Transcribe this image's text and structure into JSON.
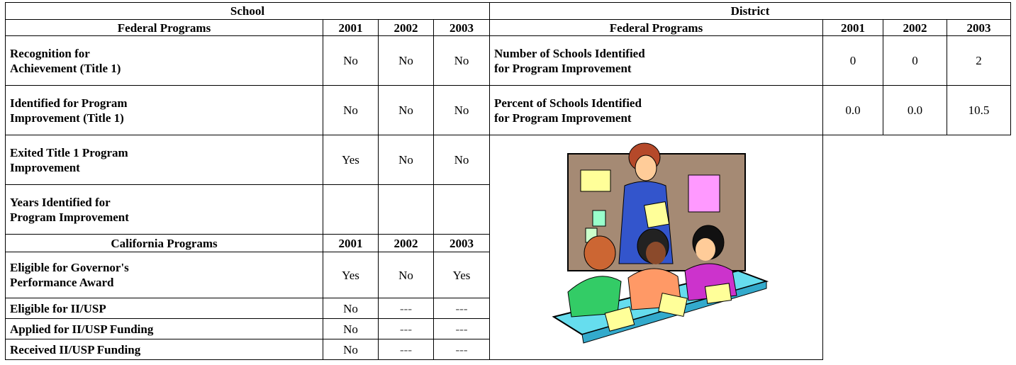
{
  "school": {
    "title": "School",
    "federal_header": [
      "Federal Programs",
      "2001",
      "2002",
      "2003"
    ],
    "federal_rows": [
      [
        "Recognition for\nAchievement (Title 1)",
        "No",
        "No",
        "No"
      ],
      [
        "Identified for Program\nImprovement (Title 1)",
        "No",
        "No",
        "No"
      ],
      [
        "Exited Title 1 Program\nImprovement",
        "Yes",
        "No",
        "No"
      ],
      [
        "Years Identified for\nProgram Improvement",
        null,
        null,
        null
      ]
    ],
    "california_header": [
      "California Programs",
      "2001",
      "2002",
      "2003"
    ],
    "california_rows": [
      [
        "Eligible for Governor's\nPerformance Award",
        "Yes",
        "No",
        "Yes"
      ],
      [
        "Eligible for II/USP",
        "No",
        "---",
        "---"
      ],
      [
        "Applied for II/USP Funding",
        "No",
        "---",
        "---"
      ],
      [
        "Received II/USP Funding",
        "No",
        "---",
        "---"
      ]
    ]
  },
  "district": {
    "title": "District",
    "header": [
      "Federal Programs",
      "2001",
      "2002",
      "2003"
    ],
    "rows": [
      [
        "Number of Schools Identified\nfor Program Improvement",
        "0",
        "0",
        "2"
      ],
      [
        "Percent of Schools Identified\nfor Program Improvement",
        "0.0",
        "0.0",
        "10.5"
      ]
    ]
  }
}
